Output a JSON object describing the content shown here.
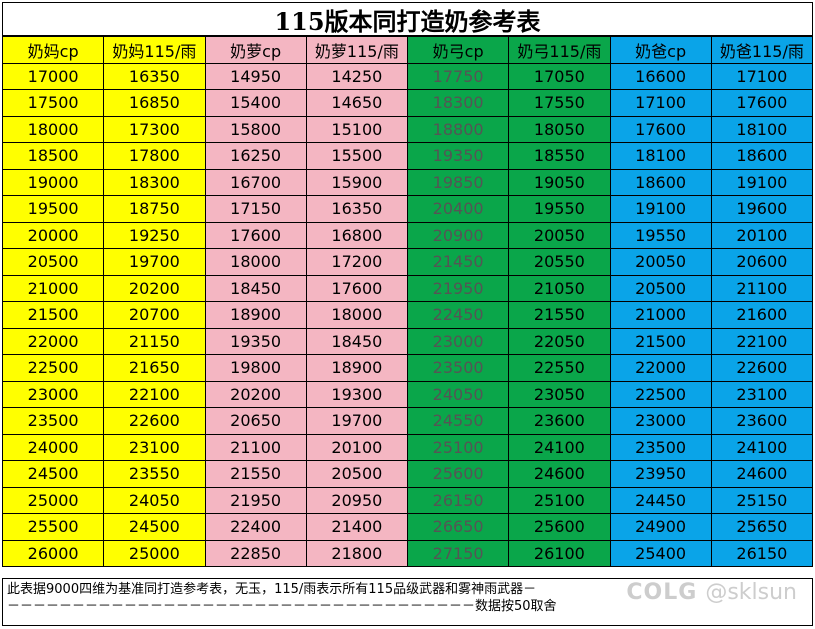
{
  "title": "115版本同打造奶参考表",
  "columns": [
    {
      "label": "奶妈cp",
      "color": "#ffff00"
    },
    {
      "label": "奶妈115/雨",
      "color": "#ffff00"
    },
    {
      "label": "奶萝cp",
      "color": "#f4b6c2"
    },
    {
      "label": "奶萝115/雨",
      "color": "#f4b6c2"
    },
    {
      "label": "奶弓cp",
      "color": "#0aa64a"
    },
    {
      "label": "奶弓115/雨",
      "color": "#0aa64a"
    },
    {
      "label": "奶爸cp",
      "color": "#0aa4e8"
    },
    {
      "label": "奶爸115/雨",
      "color": "#0aa4e8"
    }
  ],
  "rows": [
    [
      "17000",
      "16350",
      "14950",
      "14250",
      "17750",
      "17050",
      "16600",
      "17100"
    ],
    [
      "17500",
      "16850",
      "15400",
      "14650",
      "18300",
      "17550",
      "17100",
      "17600"
    ],
    [
      "18000",
      "17300",
      "15800",
      "15100",
      "18800",
      "18050",
      "17600",
      "18100"
    ],
    [
      "18500",
      "17800",
      "16250",
      "15500",
      "19350",
      "18550",
      "18100",
      "18600"
    ],
    [
      "19000",
      "18300",
      "16700",
      "15900",
      "19850",
      "19050",
      "18600",
      "19100"
    ],
    [
      "19500",
      "18750",
      "17150",
      "16350",
      "20400",
      "19550",
      "19100",
      "19600"
    ],
    [
      "20000",
      "19250",
      "17600",
      "16800",
      "20900",
      "20050",
      "19550",
      "20100"
    ],
    [
      "20500",
      "19700",
      "18000",
      "17200",
      "21450",
      "20550",
      "20050",
      "20600"
    ],
    [
      "21000",
      "20200",
      "18450",
      "17600",
      "21950",
      "21050",
      "20500",
      "21100"
    ],
    [
      "21500",
      "20700",
      "18900",
      "18000",
      "22450",
      "21550",
      "21000",
      "21600"
    ],
    [
      "22000",
      "21150",
      "19350",
      "18450",
      "23000",
      "22050",
      "21500",
      "22100"
    ],
    [
      "22500",
      "21650",
      "19800",
      "18900",
      "23500",
      "22550",
      "22000",
      "22600"
    ],
    [
      "23000",
      "22100",
      "20200",
      "19300",
      "24050",
      "23050",
      "22500",
      "23100"
    ],
    [
      "23500",
      "22600",
      "20650",
      "19700",
      "24550",
      "23600",
      "23000",
      "23600"
    ],
    [
      "24000",
      "23100",
      "21100",
      "20100",
      "25100",
      "24100",
      "23500",
      "24100"
    ],
    [
      "24500",
      "23550",
      "21550",
      "20500",
      "25600",
      "24600",
      "23950",
      "24600"
    ],
    [
      "25000",
      "24050",
      "21950",
      "20950",
      "26150",
      "25100",
      "24450",
      "25150"
    ],
    [
      "25500",
      "24500",
      "22400",
      "21400",
      "26650",
      "25600",
      "24900",
      "25650"
    ],
    [
      "26000",
      "25000",
      "22850",
      "21800",
      "27150",
      "26100",
      "25400",
      "26150"
    ]
  ],
  "note": {
    "line1": "此表据9000四维为基准同打造参考表，无玉，115/雨表示所有115品级武器和雾神雨武器－",
    "line2": "－－－－－－－－－－－－－－－－－－－－－－－－－－－－－－－－－－－－数据按50取舍"
  },
  "watermark": {
    "logo": "COLG",
    "handle": "@sklsun"
  }
}
